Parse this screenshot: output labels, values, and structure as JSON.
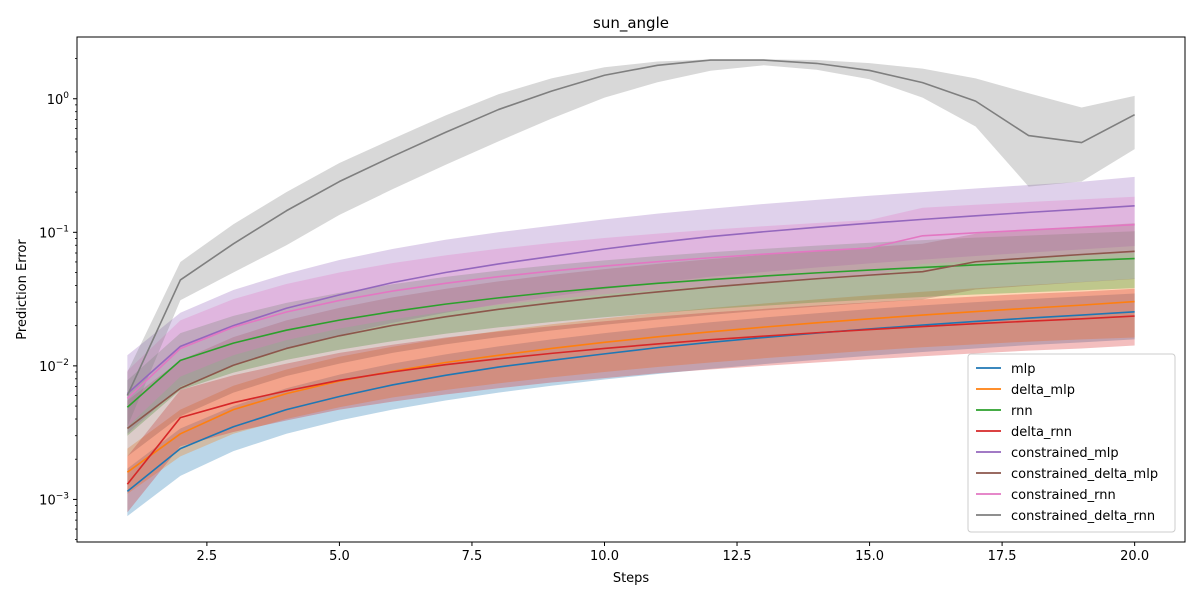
{
  "chart_data": {
    "type": "line",
    "title": "sun_angle",
    "xlabel": "Steps",
    "ylabel": "Prediction Error",
    "yscale": "log",
    "xlim": [
      0.05,
      20.95
    ],
    "ylim": [
      0.00048,
      2.9
    ],
    "grid": false,
    "legend_position": "lower-right",
    "x": [
      1,
      2,
      3,
      4,
      5,
      6,
      7,
      8,
      9,
      10,
      11,
      12,
      13,
      14,
      15,
      16,
      17,
      18,
      19,
      20
    ],
    "xticks": [
      2.5,
      5.0,
      7.5,
      10.0,
      12.5,
      15.0,
      17.5,
      20.0
    ],
    "xtick_labels": [
      "2.5",
      "5.0",
      "7.5",
      "10.0",
      "12.5",
      "15.0",
      "17.5",
      "20.0"
    ],
    "yticks": [
      0.001,
      0.01,
      0.1,
      1
    ],
    "ytick_base": "10",
    "ytick_exponents": [
      "−3",
      "−2",
      "−1",
      "0"
    ],
    "series": [
      {
        "name": "mlp",
        "color": "#1f77b4",
        "values": [
          0.00115,
          0.0024,
          0.0035,
          0.0047,
          0.0059,
          0.0072,
          0.0085,
          0.0098,
          0.011,
          0.0123,
          0.0137,
          0.015,
          0.0163,
          0.0176,
          0.0189,
          0.0202,
          0.0215,
          0.0228,
          0.024,
          0.0254
        ],
        "lower": [
          0.00075,
          0.0015,
          0.0023,
          0.0031,
          0.0039,
          0.0047,
          0.0055,
          0.0063,
          0.0071,
          0.0079,
          0.0087,
          0.0095,
          0.0103,
          0.0111,
          0.0119,
          0.0127,
          0.0135,
          0.0143,
          0.015,
          0.0158
        ],
        "upper": [
          0.0017,
          0.0034,
          0.005,
          0.0068,
          0.0086,
          0.0104,
          0.0122,
          0.014,
          0.0158,
          0.0176,
          0.0194,
          0.0212,
          0.023,
          0.0248,
          0.0266,
          0.0284,
          0.03,
          0.0316,
          0.0332,
          0.0348
        ]
      },
      {
        "name": "delta_mlp",
        "color": "#ff7f0e",
        "values": [
          0.0016,
          0.0031,
          0.0047,
          0.0062,
          0.0077,
          0.0091,
          0.0106,
          0.012,
          0.0135,
          0.015,
          0.0165,
          0.018,
          0.0195,
          0.021,
          0.0225,
          0.024,
          0.0255,
          0.027,
          0.0285,
          0.0303
        ],
        "lower": [
          0.0011,
          0.0021,
          0.0031,
          0.004,
          0.0049,
          0.0058,
          0.0066,
          0.0074,
          0.0082,
          0.009,
          0.0098,
          0.0106,
          0.0114,
          0.0122,
          0.013,
          0.0138,
          0.0145,
          0.0152,
          0.0158,
          0.0163
        ],
        "upper": [
          0.0024,
          0.0047,
          0.0071,
          0.0094,
          0.0117,
          0.0139,
          0.0161,
          0.0183,
          0.0205,
          0.0227,
          0.0249,
          0.0271,
          0.0293,
          0.0315,
          0.0337,
          0.0359,
          0.0381,
          0.0403,
          0.0425,
          0.045
        ]
      },
      {
        "name": "rnn",
        "color": "#2ca02c",
        "values": [
          0.0049,
          0.011,
          0.0148,
          0.0185,
          0.022,
          0.0255,
          0.029,
          0.0323,
          0.0355,
          0.0385,
          0.0415,
          0.0443,
          0.047,
          0.0497,
          0.0522,
          0.0546,
          0.057,
          0.0592,
          0.0614,
          0.0636
        ],
        "lower": [
          0.003,
          0.0066,
          0.0089,
          0.0111,
          0.0132,
          0.0153,
          0.0174,
          0.0194,
          0.0213,
          0.0231,
          0.0249,
          0.0266,
          0.0282,
          0.0298,
          0.0313,
          0.0328,
          0.0342,
          0.0355,
          0.0368,
          0.0382
        ],
        "upper": [
          0.0078,
          0.0176,
          0.0237,
          0.0296,
          0.0352,
          0.0408,
          0.0464,
          0.0517,
          0.0568,
          0.0616,
          0.0664,
          0.0709,
          0.0752,
          0.0795,
          0.0835,
          0.0874,
          0.0912,
          0.0947,
          0.0982,
          0.1018
        ]
      },
      {
        "name": "delta_rnn",
        "color": "#d62728",
        "values": [
          0.0013,
          0.0041,
          0.0053,
          0.0065,
          0.0078,
          0.009,
          0.0102,
          0.0113,
          0.0124,
          0.0135,
          0.0146,
          0.0157,
          0.0167,
          0.0177,
          0.0187,
          0.0197,
          0.0207,
          0.0216,
          0.0225,
          0.0236
        ],
        "lower": [
          0.0008,
          0.0025,
          0.0032,
          0.0039,
          0.0047,
          0.0054,
          0.0061,
          0.0068,
          0.0075,
          0.0081,
          0.0088,
          0.0094,
          0.01,
          0.0106,
          0.0112,
          0.0118,
          0.0124,
          0.013,
          0.0135,
          0.0142
        ],
        "upper": [
          0.0021,
          0.0066,
          0.0085,
          0.0104,
          0.0125,
          0.0144,
          0.0163,
          0.0181,
          0.0198,
          0.0216,
          0.0234,
          0.0251,
          0.0267,
          0.0283,
          0.0299,
          0.0315,
          0.0331,
          0.0346,
          0.036,
          0.0378
        ]
      },
      {
        "name": "constrained_mlp",
        "color": "#9467bd",
        "values": [
          0.0062,
          0.014,
          0.02,
          0.027,
          0.034,
          0.042,
          0.05,
          0.058,
          0.066,
          0.075,
          0.084,
          0.093,
          0.101,
          0.109,
          0.117,
          0.125,
          0.133,
          0.141,
          0.149,
          0.158
        ],
        "lower": [
          0.0031,
          0.007,
          0.01,
          0.0135,
          0.017,
          0.021,
          0.025,
          0.029,
          0.033,
          0.0375,
          0.042,
          0.0465,
          0.0505,
          0.0545,
          0.0585,
          0.0625,
          0.0665,
          0.0705,
          0.0745,
          0.079
        ],
        "upper": [
          0.012,
          0.025,
          0.037,
          0.049,
          0.062,
          0.075,
          0.088,
          0.1,
          0.112,
          0.125,
          0.138,
          0.15,
          0.163,
          0.175,
          0.188,
          0.2,
          0.213,
          0.226,
          0.239,
          0.26
        ]
      },
      {
        "name": "constrained_delta_mlp",
        "color": "#8c564b",
        "values": [
          0.0034,
          0.0068,
          0.0101,
          0.0135,
          0.0168,
          0.0201,
          0.0233,
          0.0265,
          0.0296,
          0.0327,
          0.0358,
          0.0389,
          0.0419,
          0.0449,
          0.0478,
          0.0507,
          0.0602,
          0.0642,
          0.0682,
          0.0721
        ],
        "lower": [
          0.0021,
          0.0042,
          0.0063,
          0.0084,
          0.0104,
          0.0125,
          0.0145,
          0.0164,
          0.0184,
          0.0203,
          0.0222,
          0.0241,
          0.026,
          0.0278,
          0.0296,
          0.0314,
          0.0373,
          0.0398,
          0.0423,
          0.0447
        ],
        "upper": [
          0.0055,
          0.011,
          0.0164,
          0.0219,
          0.0272,
          0.0326,
          0.0377,
          0.0429,
          0.048,
          0.053,
          0.058,
          0.063,
          0.0679,
          0.0727,
          0.0774,
          0.0821,
          0.0975,
          0.104,
          0.1105,
          0.1168
        ]
      },
      {
        "name": "constrained_rnn",
        "color": "#e377c2",
        "values": [
          0.0057,
          0.0135,
          0.0195,
          0.0253,
          0.0309,
          0.0363,
          0.0415,
          0.0465,
          0.0513,
          0.0559,
          0.0603,
          0.0645,
          0.0686,
          0.0725,
          0.0763,
          0.0942,
          0.0992,
          0.104,
          0.109,
          0.114
        ],
        "lower": [
          0.0035,
          0.0083,
          0.012,
          0.0156,
          0.019,
          0.0223,
          0.0255,
          0.0286,
          0.0315,
          0.0344,
          0.0371,
          0.0397,
          0.0422,
          0.0446,
          0.0469,
          0.058,
          0.061,
          0.064,
          0.067,
          0.0701
        ],
        "upper": [
          0.0092,
          0.0219,
          0.0316,
          0.041,
          0.05,
          0.0588,
          0.0672,
          0.0753,
          0.0831,
          0.0906,
          0.0977,
          0.1045,
          0.1111,
          0.1175,
          0.1236,
          0.1526,
          0.1607,
          0.1685,
          0.1766,
          0.1847
        ]
      },
      {
        "name": "constrained_delta_rnn",
        "color": "#7f7f7f",
        "values": [
          0.006,
          0.044,
          0.082,
          0.145,
          0.24,
          0.37,
          0.56,
          0.83,
          1.14,
          1.5,
          1.78,
          1.95,
          1.95,
          1.84,
          1.63,
          1.32,
          0.96,
          0.53,
          0.47,
          0.76
        ],
        "lower": [
          0.0035,
          0.031,
          0.05,
          0.08,
          0.135,
          0.21,
          0.32,
          0.48,
          0.71,
          1.02,
          1.33,
          1.62,
          1.78,
          1.65,
          1.4,
          1.02,
          0.62,
          0.22,
          0.24,
          0.42
        ],
        "upper": [
          0.009,
          0.06,
          0.115,
          0.2,
          0.33,
          0.5,
          0.75,
          1.08,
          1.42,
          1.72,
          1.9,
          1.97,
          1.97,
          1.95,
          1.85,
          1.68,
          1.42,
          1.1,
          0.86,
          1.05
        ]
      }
    ]
  }
}
